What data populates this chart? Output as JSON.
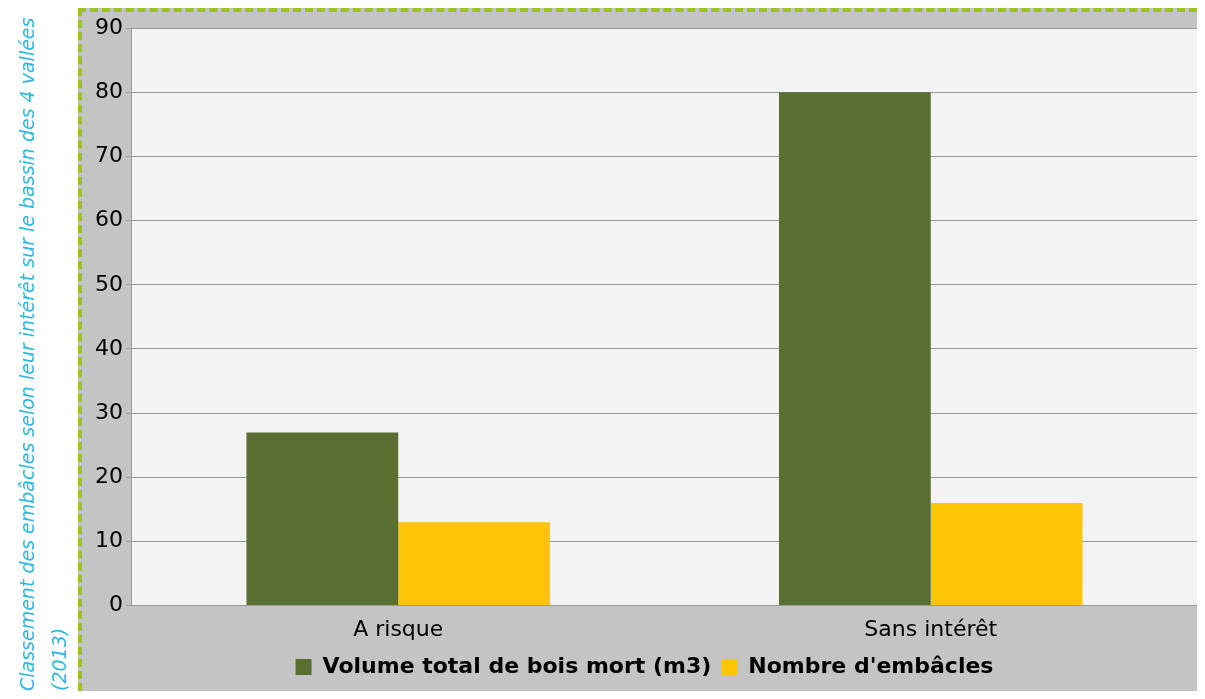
{
  "chart_data": {
    "type": "bar",
    "categories": [
      "A risque",
      "Sans intérêt"
    ],
    "series": [
      {
        "name": "Volume total de bois mort (m3)",
        "color": "#5b6e31",
        "values": [
          27,
          80
        ]
      },
      {
        "name": "Nombre d'embâcles",
        "color": "#ffc506",
        "values": [
          13,
          16
        ]
      }
    ],
    "ylim": [
      0,
      90
    ],
    "yticks": [
      0,
      10,
      20,
      30,
      40,
      50,
      60,
      70,
      80,
      90
    ],
    "grid": "y",
    "legend": "bottom",
    "annotations": [
      "Classement des embâcles selon leur intérêt sur le bassin des 4 vallées (2013)"
    ]
  }
}
